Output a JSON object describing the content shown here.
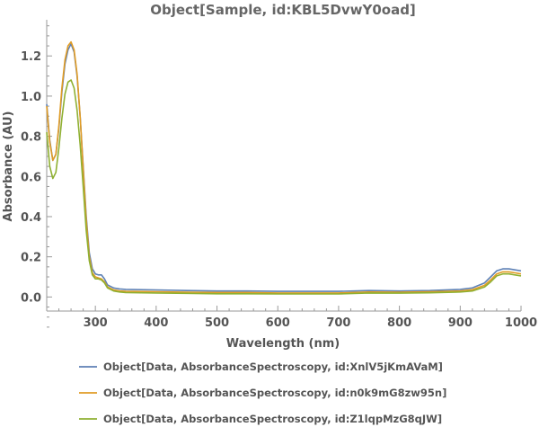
{
  "chart_data": {
    "type": "line",
    "title": "Object[Sample, id:KBL5DvwY0oad]",
    "xlabel": "Wavelength  (nm)",
    "ylabel": "Absorbance  (AU)",
    "xlim": [
      220,
      1000
    ],
    "ylim": [
      -0.07,
      1.38
    ],
    "x_ticks": [
      300,
      400,
      500,
      600,
      700,
      800,
      900,
      1000
    ],
    "y_ticks": [
      0.0,
      0.2,
      0.4,
      0.6,
      0.8,
      1.0,
      1.2
    ],
    "grid": false,
    "legend_position": "bottom",
    "series": [
      {
        "name": "Object[Data, AbsorbanceSpectroscopy, id:XnlV5jKmAVaM]",
        "color": "#5e81b5",
        "x": [
          220,
          225,
          230,
          235,
          240,
          245,
          250,
          255,
          260,
          265,
          270,
          275,
          280,
          285,
          290,
          295,
          300,
          305,
          310,
          315,
          320,
          330,
          340,
          350,
          400,
          450,
          500,
          550,
          600,
          650,
          700,
          750,
          800,
          850,
          900,
          920,
          940,
          950,
          960,
          970,
          980,
          990,
          1000
        ],
        "y": [
          0.96,
          0.78,
          0.68,
          0.71,
          0.84,
          1.02,
          1.16,
          1.23,
          1.26,
          1.22,
          1.1,
          0.9,
          0.65,
          0.4,
          0.22,
          0.14,
          0.115,
          0.11,
          0.11,
          0.09,
          0.06,
          0.045,
          0.04,
          0.038,
          0.035,
          0.032,
          0.03,
          0.03,
          0.028,
          0.028,
          0.028,
          0.032,
          0.03,
          0.032,
          0.038,
          0.045,
          0.07,
          0.1,
          0.13,
          0.14,
          0.14,
          0.135,
          0.13
        ]
      },
      {
        "name": "Object[Data, AbsorbanceSpectroscopy, id:n0k9mG8zw95n]",
        "color": "#e19c24",
        "x": [
          220,
          225,
          230,
          235,
          240,
          245,
          250,
          255,
          260,
          265,
          270,
          275,
          280,
          285,
          290,
          295,
          300,
          305,
          310,
          315,
          320,
          330,
          340,
          350,
          400,
          450,
          500,
          550,
          600,
          650,
          700,
          750,
          800,
          850,
          900,
          920,
          940,
          950,
          960,
          970,
          980,
          990,
          1000
        ],
        "y": [
          0.95,
          0.77,
          0.68,
          0.71,
          0.85,
          1.04,
          1.18,
          1.25,
          1.27,
          1.23,
          1.11,
          0.9,
          0.64,
          0.38,
          0.2,
          0.12,
          0.1,
          0.095,
          0.09,
          0.075,
          0.05,
          0.035,
          0.03,
          0.028,
          0.026,
          0.024,
          0.022,
          0.022,
          0.02,
          0.02,
          0.02,
          0.025,
          0.024,
          0.026,
          0.03,
          0.036,
          0.058,
          0.085,
          0.115,
          0.125,
          0.125,
          0.12,
          0.115
        ]
      },
      {
        "name": "Object[Data, AbsorbanceSpectroscopy, id:Z1lqpMzG8qJW]",
        "color": "#8fb032",
        "x": [
          220,
          225,
          230,
          235,
          240,
          245,
          250,
          255,
          260,
          265,
          270,
          275,
          280,
          285,
          290,
          295,
          300,
          305,
          310,
          315,
          320,
          330,
          340,
          350,
          400,
          450,
          500,
          550,
          600,
          650,
          700,
          750,
          800,
          850,
          900,
          920,
          940,
          950,
          960,
          970,
          980,
          990,
          1000
        ],
        "y": [
          0.82,
          0.65,
          0.59,
          0.62,
          0.74,
          0.89,
          1.01,
          1.07,
          1.08,
          1.04,
          0.93,
          0.76,
          0.55,
          0.33,
          0.18,
          0.11,
          0.09,
          0.09,
          0.085,
          0.07,
          0.045,
          0.03,
          0.025,
          0.022,
          0.02,
          0.018,
          0.016,
          0.016,
          0.015,
          0.015,
          0.015,
          0.02,
          0.019,
          0.021,
          0.025,
          0.03,
          0.05,
          0.075,
          0.105,
          0.115,
          0.115,
          0.11,
          0.105
        ]
      }
    ]
  }
}
